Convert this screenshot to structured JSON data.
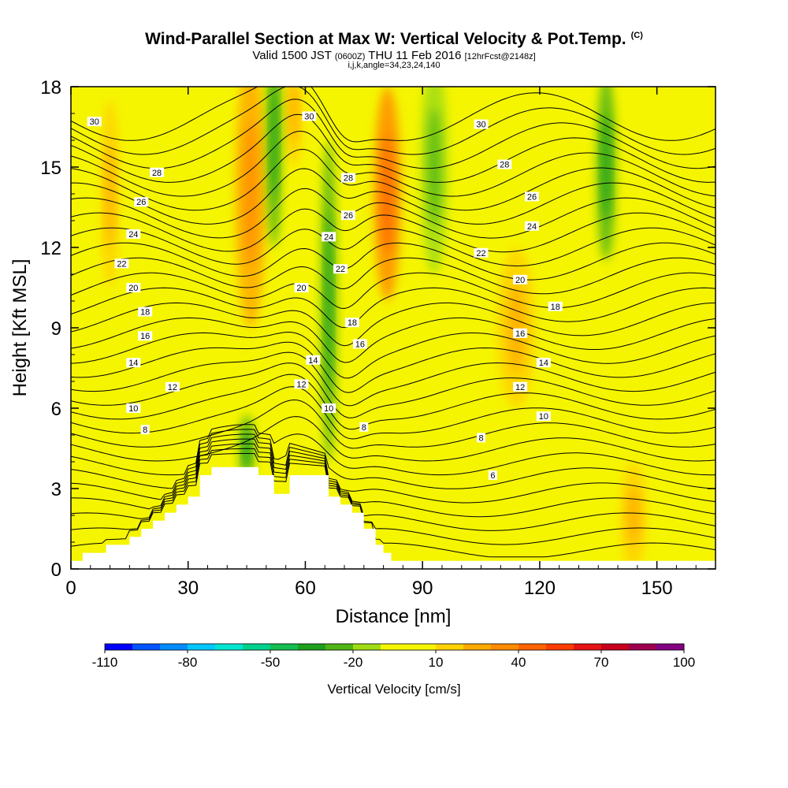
{
  "title": {
    "main": "Wind-Parallel Section at Max W: Vertical Velocity & Pot.Temp.",
    "copyright": "(C)",
    "valid_a": "Valid 1500 JST ",
    "valid_b": "(0600Z)",
    "valid_c": " THU 11 Feb 2016 ",
    "valid_d": "[12hrFcst@2148z]",
    "ijk": "i,j,k,angle=34,23,24,140"
  },
  "chart_data": {
    "type": "heatmap",
    "xlabel": "Distance [nm]",
    "ylabel": "Height [Kft MSL]",
    "xlim": [
      0,
      165
    ],
    "ylim": [
      0,
      18
    ],
    "x_ticks": [
      0,
      30,
      60,
      90,
      120,
      150
    ],
    "y_ticks": [
      0,
      3,
      6,
      9,
      12,
      15,
      18
    ],
    "colorbar": {
      "label": "Vertical Velocity [cm/s]",
      "tick_labels": [
        "-110",
        "-80",
        "-50",
        "-20",
        "10",
        "40",
        "70",
        "100"
      ],
      "levels": [
        -110,
        -100,
        -90,
        -80,
        -70,
        -60,
        -50,
        -40,
        -30,
        -20,
        -10,
        0,
        10,
        20,
        30,
        40,
        50,
        60,
        70,
        80,
        90,
        100
      ],
      "colors": [
        "#0000ff",
        "#0055ff",
        "#008cff",
        "#00c8ff",
        "#00e6d2",
        "#00d28c",
        "#14be50",
        "#1ea01e",
        "#50b414",
        "#a0dc14",
        "#f5f500",
        "#f5f500",
        "#ffd200",
        "#ffaa00",
        "#ff8c00",
        "#ff6400",
        "#ff3c00",
        "#e61414",
        "#c8001e",
        "#a00050",
        "#820082"
      ]
    },
    "background_color": "#f5f500",
    "terrain": [
      [
        0,
        0.3
      ],
      [
        3,
        0.6
      ],
      [
        9,
        0.9
      ],
      [
        15,
        1.2
      ],
      [
        18,
        1.5
      ],
      [
        21,
        1.8
      ],
      [
        24,
        2.1
      ],
      [
        27,
        2.4
      ],
      [
        30,
        2.7
      ],
      [
        33,
        3.5
      ],
      [
        36,
        3.8
      ],
      [
        45,
        3.8
      ],
      [
        48,
        3.5
      ],
      [
        51,
        3.5
      ],
      [
        52,
        2.8
      ],
      [
        55,
        2.8
      ],
      [
        56,
        3.5
      ],
      [
        65,
        3.5
      ],
      [
        66,
        2.7
      ],
      [
        69,
        2.4
      ],
      [
        72,
        2.1
      ],
      [
        75,
        1.5
      ],
      [
        78,
        0.9
      ],
      [
        80,
        0.6
      ],
      [
        82,
        0.3
      ],
      [
        165,
        0.3
      ]
    ],
    "velocity_features": [
      {
        "label": "updraft",
        "value": 20,
        "x": 46,
        "y": 14,
        "w": 8,
        "h": 10
      },
      {
        "label": "updraft",
        "value": 30,
        "x": 81,
        "y": 14,
        "w": 7,
        "h": 8
      },
      {
        "label": "updraft",
        "value": 15,
        "x": 57,
        "y": 17,
        "w": 5,
        "h": 4
      },
      {
        "label": "updraft",
        "value": 15,
        "x": 114,
        "y": 9,
        "w": 10,
        "h": 6
      },
      {
        "label": "updraft",
        "value": 15,
        "x": 144,
        "y": 2,
        "w": 7,
        "h": 4
      },
      {
        "label": "updraft",
        "value": 10,
        "x": 10,
        "y": 14,
        "w": 5,
        "h": 7
      },
      {
        "label": "downdraft",
        "value": -30,
        "x": 52,
        "y": 16,
        "w": 4,
        "h": 8
      },
      {
        "label": "downdraft",
        "value": -30,
        "x": 66,
        "y": 10,
        "w": 4,
        "h": 12
      },
      {
        "label": "downdraft",
        "value": -30,
        "x": 45,
        "y": 4.5,
        "w": 4,
        "h": 2.5
      },
      {
        "label": "downdraft",
        "value": -20,
        "x": 93,
        "y": 15,
        "w": 7,
        "h": 8
      },
      {
        "label": "downdraft",
        "value": -30,
        "x": 137,
        "y": 15,
        "w": 5,
        "h": 7
      }
    ],
    "theta_contours": {
      "levels": [
        2,
        3,
        4,
        5,
        6,
        7,
        8,
        9,
        10,
        11,
        12,
        13,
        14,
        15,
        16,
        17,
        18,
        19,
        20,
        21,
        22,
        23,
        24,
        25,
        26,
        27,
        28,
        29,
        30,
        31,
        32
      ],
      "labels": [
        {
          "text": "30",
          "x": 6,
          "y": 16.7
        },
        {
          "text": "28",
          "x": 22,
          "y": 14.8
        },
        {
          "text": "26",
          "x": 18,
          "y": 13.7
        },
        {
          "text": "24",
          "x": 16,
          "y": 12.5
        },
        {
          "text": "22",
          "x": 13,
          "y": 11.4
        },
        {
          "text": "20",
          "x": 16,
          "y": 10.5
        },
        {
          "text": "18",
          "x": 19,
          "y": 9.6
        },
        {
          "text": "16",
          "x": 19,
          "y": 8.7
        },
        {
          "text": "14",
          "x": 16,
          "y": 7.7
        },
        {
          "text": "12",
          "x": 26,
          "y": 6.8
        },
        {
          "text": "10",
          "x": 16,
          "y": 6.0
        },
        {
          "text": "8",
          "x": 19,
          "y": 5.2
        },
        {
          "text": "30",
          "x": 61,
          "y": 16.9
        },
        {
          "text": "28",
          "x": 71,
          "y": 14.6
        },
        {
          "text": "26",
          "x": 71,
          "y": 13.2
        },
        {
          "text": "24",
          "x": 66,
          "y": 12.4
        },
        {
          "text": "22",
          "x": 69,
          "y": 11.2
        },
        {
          "text": "20",
          "x": 59,
          "y": 10.5
        },
        {
          "text": "18",
          "x": 72,
          "y": 9.2
        },
        {
          "text": "16",
          "x": 74,
          "y": 8.4
        },
        {
          "text": "14",
          "x": 62,
          "y": 7.8
        },
        {
          "text": "12",
          "x": 59,
          "y": 6.9
        },
        {
          "text": "10",
          "x": 66,
          "y": 6.0
        },
        {
          "text": "8",
          "x": 75,
          "y": 5.3
        },
        {
          "text": "30",
          "x": 105,
          "y": 16.6
        },
        {
          "text": "28",
          "x": 111,
          "y": 15.1
        },
        {
          "text": "26",
          "x": 118,
          "y": 13.9
        },
        {
          "text": "24",
          "x": 118,
          "y": 12.8
        },
        {
          "text": "22",
          "x": 105,
          "y": 11.8
        },
        {
          "text": "20",
          "x": 115,
          "y": 10.8
        },
        {
          "text": "18",
          "x": 124,
          "y": 9.8
        },
        {
          "text": "16",
          "x": 115,
          "y": 8.8
        },
        {
          "text": "14",
          "x": 121,
          "y": 7.7
        },
        {
          "text": "12",
          "x": 115,
          "y": 6.8
        },
        {
          "text": "10",
          "x": 121,
          "y": 5.7
        },
        {
          "text": "8",
          "x": 105,
          "y": 4.9
        },
        {
          "text": "6",
          "x": 108,
          "y": 3.5
        }
      ]
    }
  }
}
